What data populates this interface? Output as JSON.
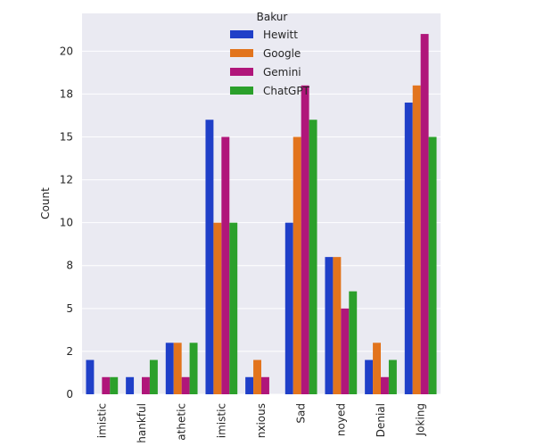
{
  "chart_data": {
    "type": "bar",
    "xlabel": "",
    "ylabel": "Count",
    "ylim": [
      0,
      22.2
    ],
    "yticks": [
      0,
      2,
      5,
      8,
      10,
      12,
      15,
      18,
      20
    ],
    "ytick_values": [
      0,
      2.5,
      5,
      7.5,
      10,
      12.5,
      15,
      17.5,
      20
    ],
    "grid": true,
    "legend": {
      "title": "Bakur",
      "placement": "top-center"
    },
    "categories": [
      "imistic",
      "hankful",
      "athetic",
      "imistic",
      "nxious",
      "Sad",
      "noyed",
      "Denial",
      "Joking"
    ],
    "series": [
      {
        "name": "Hewitt",
        "color": "#1f3fc8",
        "values": [
          2,
          1,
          3,
          16,
          1,
          10,
          8,
          2,
          17
        ]
      },
      {
        "name": "Google",
        "color": "#e2741d",
        "values": [
          0,
          0,
          3,
          10,
          2,
          15,
          8,
          3,
          18
        ]
      },
      {
        "name": "Gemini",
        "color": "#b0167a",
        "values": [
          1,
          1,
          1,
          15,
          1,
          18,
          5,
          1,
          21
        ]
      },
      {
        "name": "ChatGPT",
        "color": "#2ba02b",
        "values": [
          1,
          2,
          3,
          10,
          0,
          16,
          6,
          2,
          15
        ]
      }
    ]
  }
}
